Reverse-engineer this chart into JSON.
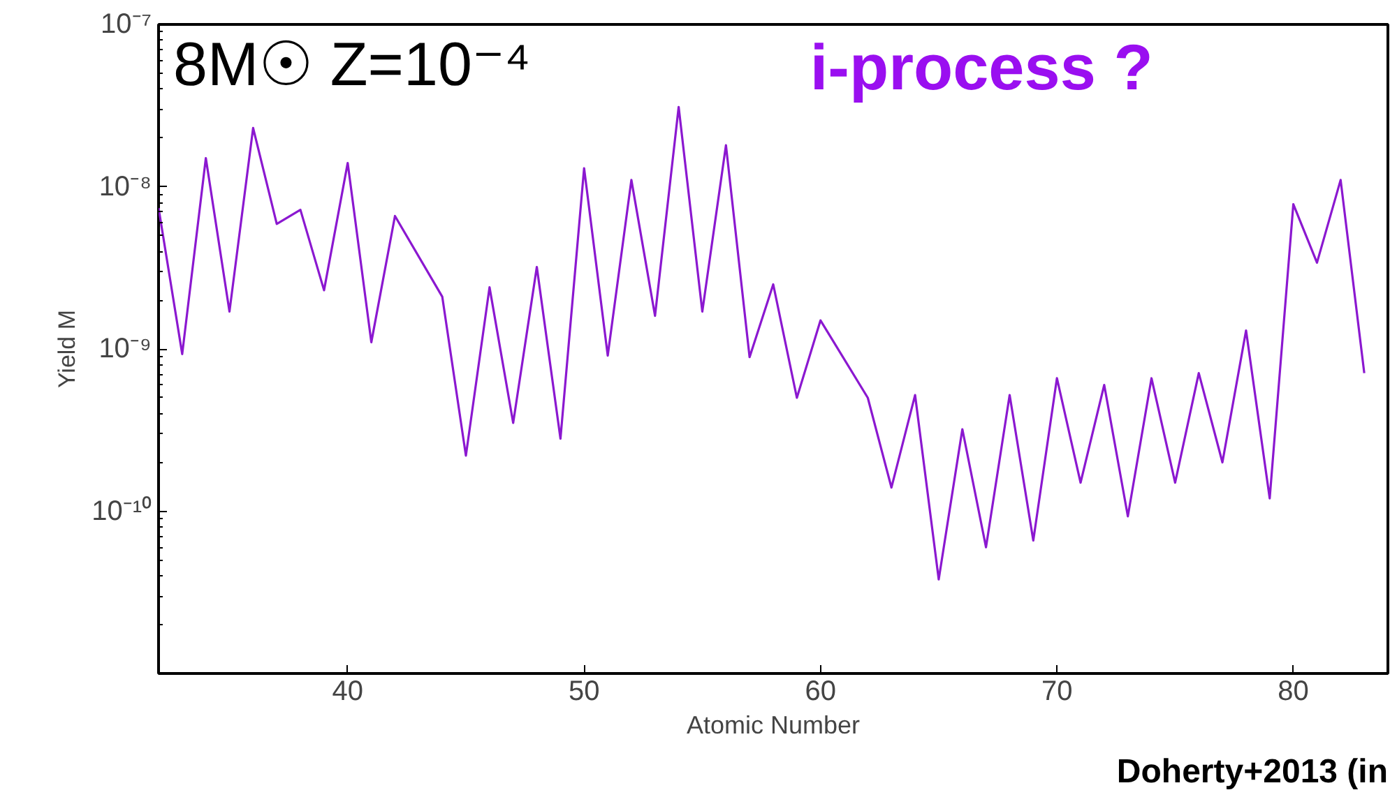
{
  "chart_data": {
    "type": "line",
    "xlabel": "Atomic Number",
    "ylabel": "Yield M",
    "log": "y",
    "annotations": [
      "8M☉ Z=10⁻⁴",
      "i-process ?",
      "Doherty+2013 (in"
    ],
    "x": [
      32,
      33,
      34,
      35,
      36,
      37,
      38,
      39,
      40,
      41,
      42,
      44,
      45,
      46,
      47,
      48,
      49,
      50,
      51,
      52,
      53,
      54,
      55,
      56,
      57,
      58,
      59,
      60,
      62,
      63,
      64,
      65,
      66,
      67,
      68,
      69,
      70,
      71,
      72,
      73,
      74,
      75,
      76,
      77,
      78,
      79,
      80,
      81,
      82,
      83
    ],
    "series": [
      {
        "color": "#8b18d0",
        "values": [
          7.4e-09,
          9.3e-10,
          1.5e-08,
          1.7e-09,
          2.3e-08,
          5.9e-09,
          7.2e-09,
          2.3e-09,
          1.4e-08,
          1.1e-09,
          6.6e-09,
          2.1e-09,
          2.2e-10,
          2.4e-09,
          3.5e-10,
          3.2e-09,
          2.8e-10,
          1.3e-08,
          9.1e-10,
          1.1e-08,
          1.6e-09,
          3.1e-08,
          1.7e-09,
          1.8e-08,
          8.9e-10,
          2.5e-09,
          5e-10,
          1.5e-09,
          5e-10,
          1.4e-10,
          5.2e-10,
          3.8e-11,
          3.2e-10,
          6e-11,
          5.2e-10,
          6.6e-11,
          6.6e-10,
          1.5e-10,
          6e-10,
          9.3e-11,
          6.6e-10,
          1.5e-10,
          7.1e-10,
          2e-10,
          1.3e-09,
          1.2e-10,
          7.8e-09,
          3.4e-09,
          1.1e-08,
          7.1e-10
        ]
      }
    ],
    "xlim": [
      32,
      84
    ],
    "ylim": [
      1e-11,
      1e-07
    ],
    "xticks": [
      40,
      50,
      60,
      70,
      80
    ],
    "yticks": [
      {
        "value": 1e-07,
        "label": "10⁻⁷"
      },
      {
        "value": 1e-08,
        "label": "10⁻⁸"
      },
      {
        "value": 1e-09,
        "label": "10⁻⁹"
      },
      {
        "value": 1e-10,
        "label": "10⁻¹⁰"
      },
      {
        "value": 1e-11,
        "label": null
      }
    ]
  }
}
